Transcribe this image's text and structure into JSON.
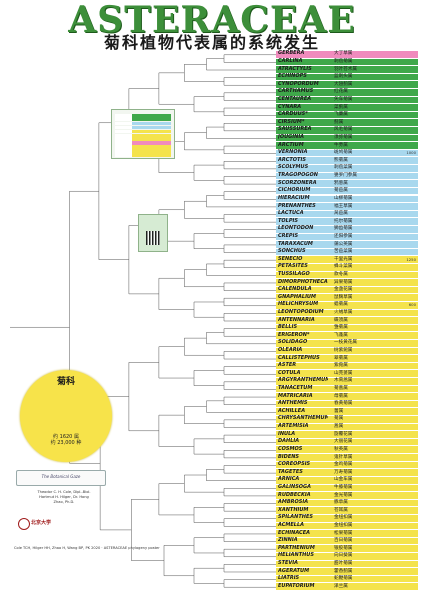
{
  "header": {
    "title": "ASTERACEAE",
    "subtitle": "菊科植物代表属的系统发生"
  },
  "genera": [
    {
      "name": "GERBERA",
      "cn": "大丁草属",
      "num": "",
      "color": "#f08bbd"
    },
    {
      "name": "CARLINA",
      "cn": "刺苞菊属",
      "num": "",
      "color": "#3fa84a"
    },
    {
      "name": "ATRACTYLIS",
      "cn": "羽叶苍术属",
      "num": "",
      "color": "#3fa84a"
    },
    {
      "name": "ECHINOPS",
      "cn": "蓝刺头属",
      "num": "",
      "color": "#3fa84a"
    },
    {
      "name": "CYNOPORDUM",
      "cn": "大翅蓟属",
      "num": "",
      "color": "#3fa84a"
    },
    {
      "name": "CARTHAMUS",
      "cn": "红花属",
      "num": "",
      "color": "#3fa84a"
    },
    {
      "name": "CENTAUREA",
      "cn": "矢车菊属",
      "num": "",
      "color": "#3fa84a"
    },
    {
      "name": "CYNARA",
      "cn": "菜蓟属",
      "num": "",
      "color": "#3fa84a"
    },
    {
      "name": "CARDUUS*",
      "cn": "飞廉属",
      "num": "",
      "color": "#3fa84a"
    },
    {
      "name": "CIRSIUM*",
      "cn": "蓟属",
      "num": "",
      "color": "#3fa84a"
    },
    {
      "name": "SAUSSUREA",
      "cn": "风毛菊属",
      "num": "",
      "color": "#3fa84a"
    },
    {
      "name": "JOUGINIA",
      "cn": "须弥菊属",
      "num": "",
      "color": "#3fa84a"
    },
    {
      "name": "ARCTIUM",
      "cn": "牛蒡属",
      "num": "",
      "color": "#3fa84a"
    },
    {
      "name": "VERNONIA",
      "cn": "斑鸠菊属",
      "num": "1000",
      "color": "#a8d8ee"
    },
    {
      "name": "ARCTOTIS",
      "cn": "熊菊属",
      "num": "",
      "color": "#a8d8ee"
    },
    {
      "name": "SCOLYMUS",
      "cn": "刺苞菜属",
      "num": "",
      "color": "#a8d8ee"
    },
    {
      "name": "TRAGOPOGON",
      "cn": "婆罗门参属",
      "num": "",
      "color": "#a8d8ee"
    },
    {
      "name": "SCORZONERA",
      "cn": "鸦葱属",
      "num": "",
      "color": "#a8d8ee"
    },
    {
      "name": "CICHORIUM",
      "cn": "菊苣属",
      "num": "",
      "color": "#a8d8ee"
    },
    {
      "name": "HIERACIUM",
      "cn": "山柳菊属",
      "num": "",
      "color": "#a8d8ee"
    },
    {
      "name": "PRENANTHES",
      "cn": "福王草属",
      "num": "",
      "color": "#a8d8ee"
    },
    {
      "name": "LACTUCA",
      "cn": "莴苣属",
      "num": "",
      "color": "#a8d8ee"
    },
    {
      "name": "TOLPIS",
      "cn": "托尔菊属",
      "num": "",
      "color": "#a8d8ee"
    },
    {
      "name": "LEONTODON",
      "cn": "狮齿菊属",
      "num": "",
      "color": "#a8d8ee"
    },
    {
      "name": "CREPIS",
      "cn": "还阳参属",
      "num": "",
      "color": "#a8d8ee"
    },
    {
      "name": "TARAXACUM",
      "cn": "蒲公英属",
      "num": "",
      "color": "#a8d8ee"
    },
    {
      "name": "SONCHUS",
      "cn": "苦苣菜属",
      "num": "",
      "color": "#a8d8ee"
    },
    {
      "name": "SENECIO",
      "cn": "千里光属",
      "num": "1250",
      "color": "#f4e34c"
    },
    {
      "name": "PETASITES",
      "cn": "蜂斗菜属",
      "num": "",
      "color": "#f4e34c"
    },
    {
      "name": "TUSSILAGO",
      "cn": "款冬属",
      "num": "",
      "color": "#f4e34c"
    },
    {
      "name": "DIMORPHOTHECA",
      "cn": "异果菊属",
      "num": "",
      "color": "#f4e34c"
    },
    {
      "name": "CALENDULA",
      "cn": "金盏花属",
      "num": "",
      "color": "#f4e34c"
    },
    {
      "name": "GNAPHALIUM",
      "cn": "鼠麴草属",
      "num": "",
      "color": "#f4e34c"
    },
    {
      "name": "HELICHRYSUM",
      "cn": "蜡菊属",
      "num": "600",
      "color": "#f4e34c"
    },
    {
      "name": "LEONTOPODIUM",
      "cn": "火绒草属",
      "num": "",
      "color": "#f4e34c"
    },
    {
      "name": "ANTENNARIA",
      "cn": "蝶须属",
      "num": "",
      "color": "#f4e34c"
    },
    {
      "name": "BELLIS",
      "cn": "雏菊属",
      "num": "",
      "color": "#f4e34c"
    },
    {
      "name": "ERIGERON*",
      "cn": "飞蓬属",
      "num": "",
      "color": "#f4e34c"
    },
    {
      "name": "SOLIDAGO",
      "cn": "一枝黄花属",
      "num": "",
      "color": "#f4e34c"
    },
    {
      "name": "OLEARIA",
      "cn": "树紫菀属",
      "num": "",
      "color": "#f4e34c"
    },
    {
      "name": "CALLISTEPHUS",
      "cn": "翠菊属",
      "num": "",
      "color": "#f4e34c"
    },
    {
      "name": "ASTER",
      "cn": "紫菀属",
      "num": "",
      "color": "#f4e34c"
    },
    {
      "name": "COTULA",
      "cn": "山芫荽属",
      "num": "",
      "color": "#f4e34c"
    },
    {
      "name": "ARGYRANTHEMUM",
      "cn": "木茼蒿属",
      "num": "",
      "color": "#f4e34c"
    },
    {
      "name": "TANACETUM",
      "cn": "菊蒿属",
      "num": "",
      "color": "#f4e34c"
    },
    {
      "name": "MATRICARIA",
      "cn": "母菊属",
      "num": "",
      "color": "#f4e34c"
    },
    {
      "name": "ANTHEMIS",
      "cn": "春黄菊属",
      "num": "",
      "color": "#f4e34c"
    },
    {
      "name": "ACHILLEA",
      "cn": "蓍属",
      "num": "",
      "color": "#f4e34c"
    },
    {
      "name": "CHRYSANTHEMUM",
      "cn": "菊属",
      "num": "",
      "color": "#f4e34c"
    },
    {
      "name": "ARTEMISIA",
      "cn": "蒿属",
      "num": "",
      "color": "#f4e34c"
    },
    {
      "name": "INULA",
      "cn": "旋覆花属",
      "num": "",
      "color": "#f4e34c"
    },
    {
      "name": "DAHLIA",
      "cn": "大丽花属",
      "num": "",
      "color": "#f4e34c"
    },
    {
      "name": "COSMOS",
      "cn": "秋英属",
      "num": "",
      "color": "#f4e34c"
    },
    {
      "name": "BIDENS",
      "cn": "鬼针草属",
      "num": "",
      "color": "#f4e34c"
    },
    {
      "name": "COREOPSIS",
      "cn": "金鸡菊属",
      "num": "",
      "color": "#f4e34c"
    },
    {
      "name": "TAGETES",
      "cn": "万寿菊属",
      "num": "",
      "color": "#f4e34c"
    },
    {
      "name": "ARNICA",
      "cn": "山金车属",
      "num": "",
      "color": "#f4e34c"
    },
    {
      "name": "GALINSOGA",
      "cn": "牛膝菊属",
      "num": "",
      "color": "#f4e34c"
    },
    {
      "name": "RUDBECKIA",
      "cn": "金光菊属",
      "num": "",
      "color": "#f4e34c"
    },
    {
      "name": "AMBROSIA",
      "cn": "豚草属",
      "num": "",
      "color": "#f4e34c"
    },
    {
      "name": "XANTHIUM",
      "cn": "苍耳属",
      "num": "",
      "color": "#f4e34c"
    },
    {
      "name": "SPILANTHES",
      "cn": "金纽扣属",
      "num": "",
      "color": "#f4e34c"
    },
    {
      "name": "ACMELLA",
      "cn": "金纽扣属",
      "num": "",
      "color": "#f4e34c"
    },
    {
      "name": "ECHINACEA",
      "cn": "松果菊属",
      "num": "",
      "color": "#f4e34c"
    },
    {
      "name": "ZINNIA",
      "cn": "百日菊属",
      "num": "",
      "color": "#f4e34c"
    },
    {
      "name": "PARTHENIUM",
      "cn": "银胶菊属",
      "num": "",
      "color": "#f4e34c"
    },
    {
      "name": "HELIANTHUS",
      "cn": "向日葵属",
      "num": "",
      "color": "#f4e34c"
    },
    {
      "name": "STEVIA",
      "cn": "甜叶菊属",
      "num": "",
      "color": "#f4e34c"
    },
    {
      "name": "AGERATUM",
      "cn": "藿香蓟属",
      "num": "",
      "color": "#f4e34c"
    },
    {
      "name": "LIATRIS",
      "cn": "蛇鞭菊属",
      "num": "",
      "color": "#f4e34c"
    },
    {
      "name": "EUPATORIUM",
      "cn": "泽兰属",
      "num": "",
      "color": "#f4e34c"
    }
  ],
  "info_circle": {
    "title": "菊科",
    "text": "",
    "stats_line1": "约 1620 属",
    "stats_line2": "约 23,000 种"
  },
  "inset_rows": [
    {
      "color": "#3fa84a"
    },
    {
      "color": "#3fa84a"
    },
    {
      "color": "#a8d8ee"
    },
    {
      "color": "#a8d8ee"
    },
    {
      "color": "#f4e34c"
    },
    {
      "color": "#f4e34c"
    },
    {
      "color": "#f4e34c"
    },
    {
      "color": "#f08bbd"
    },
    {
      "color": "#f4e34c"
    },
    {
      "color": "#f4e34c"
    },
    {
      "color": "#f4e34c"
    }
  ],
  "qr": {
    "label": ""
  },
  "badge": {
    "text": "The Botanical Gaze"
  },
  "author": {
    "text": "Theodor C. H. Cole, Dipl.-Biol. Hartmut H. Hilger, Dr. Hong Zhao, Ph.D."
  },
  "logo": {
    "name": "北京大学",
    "addr": ""
  },
  "citation": {
    "text": "Cole TCH, Hilger HH, Zhao H, Wang BP, PK 2020 · ASTERACEAE phylogeny poster"
  },
  "colors": {
    "title_green": "#3d8f3a",
    "tree_line": "#555555",
    "carduoideae": "#3fa84a",
    "cichorioideae": "#a8d8ee",
    "asteroideae": "#f4e34c",
    "mutisieae": "#f08bbd"
  }
}
